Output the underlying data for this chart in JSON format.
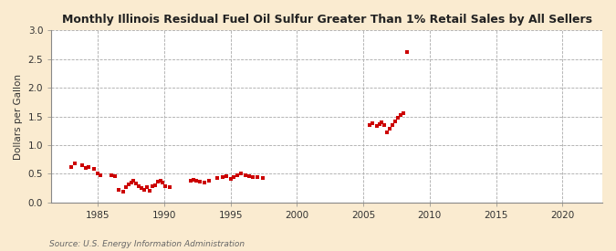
{
  "title": "Monthly Illinois Residual Fuel Oil Sulfur Greater Than 1% Retail Sales by All Sellers",
  "ylabel": "Dollars per Gallon",
  "source": "Source: U.S. Energy Information Administration",
  "bg_color": "#faebd0",
  "plot_bg_color": "#ffffff",
  "marker_color": "#cc0000",
  "xlim": [
    1981.5,
    2023.0
  ],
  "ylim": [
    0.0,
    3.0
  ],
  "xticks": [
    1985,
    1990,
    1995,
    2000,
    2005,
    2010,
    2015,
    2020
  ],
  "yticks": [
    0.0,
    0.5,
    1.0,
    1.5,
    2.0,
    2.5,
    3.0
  ],
  "data_points": [
    [
      1983.0,
      0.62
    ],
    [
      1983.3,
      0.68
    ],
    [
      1983.8,
      0.65
    ],
    [
      1984.1,
      0.6
    ],
    [
      1984.3,
      0.62
    ],
    [
      1984.7,
      0.58
    ],
    [
      1985.0,
      0.5
    ],
    [
      1985.2,
      0.48
    ],
    [
      1986.0,
      0.47
    ],
    [
      1986.3,
      0.45
    ],
    [
      1986.6,
      0.22
    ],
    [
      1986.9,
      0.19
    ],
    [
      1987.1,
      0.27
    ],
    [
      1987.3,
      0.32
    ],
    [
      1987.5,
      0.35
    ],
    [
      1987.7,
      0.38
    ],
    [
      1987.9,
      0.33
    ],
    [
      1988.1,
      0.28
    ],
    [
      1988.3,
      0.25
    ],
    [
      1988.5,
      0.22
    ],
    [
      1988.7,
      0.26
    ],
    [
      1988.9,
      0.2
    ],
    [
      1989.1,
      0.28
    ],
    [
      1989.3,
      0.3
    ],
    [
      1989.5,
      0.36
    ],
    [
      1989.7,
      0.38
    ],
    [
      1989.9,
      0.34
    ],
    [
      1990.1,
      0.28
    ],
    [
      1990.4,
      0.26
    ],
    [
      1992.0,
      0.37
    ],
    [
      1992.2,
      0.4
    ],
    [
      1992.4,
      0.38
    ],
    [
      1992.7,
      0.36
    ],
    [
      1993.0,
      0.35
    ],
    [
      1993.4,
      0.37
    ],
    [
      1994.0,
      0.42
    ],
    [
      1994.4,
      0.44
    ],
    [
      1994.7,
      0.46
    ],
    [
      1995.0,
      0.41
    ],
    [
      1995.2,
      0.44
    ],
    [
      1995.5,
      0.48
    ],
    [
      1995.8,
      0.5
    ],
    [
      1996.1,
      0.47
    ],
    [
      1996.4,
      0.46
    ],
    [
      1996.7,
      0.44
    ],
    [
      1997.0,
      0.44
    ],
    [
      1997.4,
      0.43
    ],
    [
      2005.5,
      1.35
    ],
    [
      2005.7,
      1.38
    ],
    [
      2006.0,
      1.33
    ],
    [
      2006.2,
      1.37
    ],
    [
      2006.4,
      1.4
    ],
    [
      2006.6,
      1.35
    ],
    [
      2006.8,
      1.22
    ],
    [
      2007.0,
      1.28
    ],
    [
      2007.2,
      1.35
    ],
    [
      2007.4,
      1.42
    ],
    [
      2007.6,
      1.48
    ],
    [
      2007.8,
      1.53
    ],
    [
      2008.0,
      1.55
    ],
    [
      2008.3,
      2.63
    ]
  ]
}
